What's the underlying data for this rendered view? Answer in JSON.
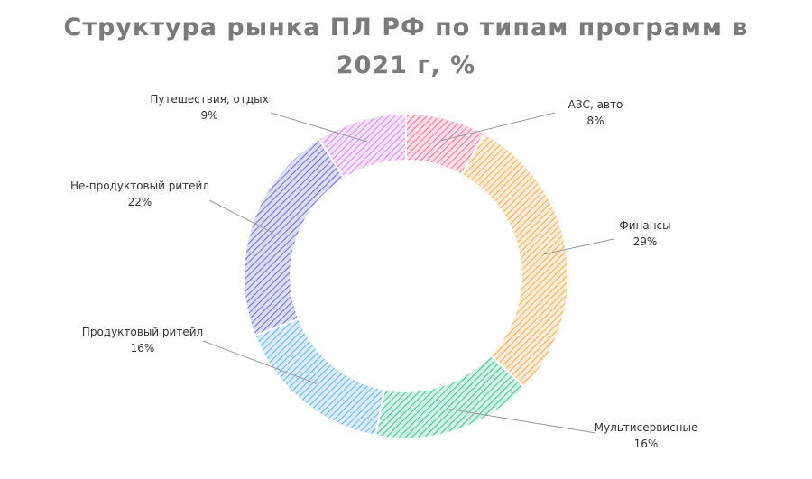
{
  "chart_data": {
    "type": "donut",
    "title": "Структура рынка ПЛ РФ по типам программ в 2021 г, %",
    "categories": [
      "АЗС, авто",
      "Финансы",
      "Мультисервисные",
      "Продуктовый ритейл",
      "Не-продуктовый ритейл",
      "Путешествия, отдых"
    ],
    "values": [
      8,
      29,
      16,
      16,
      22,
      9
    ],
    "value_labels": [
      "8%",
      "29%",
      "16%",
      "16%",
      "22%",
      "9%"
    ],
    "colors": [
      "#ee7f9e",
      "#f7b25e",
      "#4fc79b",
      "#70b7ec",
      "#7676dc",
      "#d98ff0"
    ]
  }
}
